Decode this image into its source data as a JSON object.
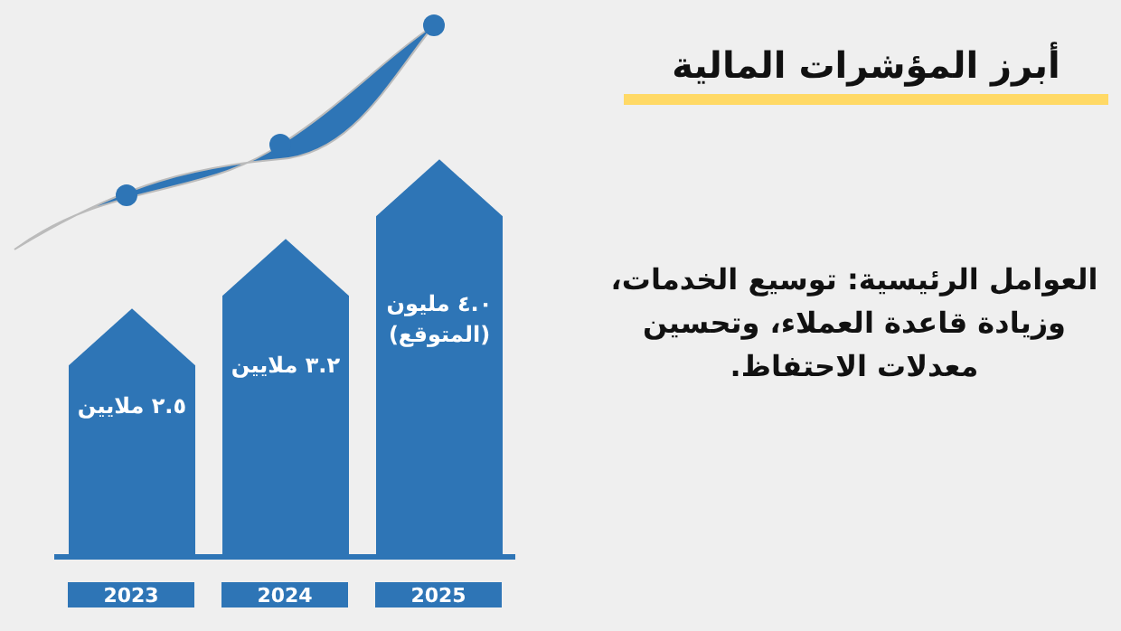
{
  "chart_data": {
    "type": "bar",
    "title": "أبرز المؤشرات المالية",
    "categories": [
      "2023",
      "2024",
      "2025"
    ],
    "values": [
      2.5,
      3.2,
      4.0
    ],
    "color": "#2e75b6",
    "value_labels": [
      "٢.٥ ملايين",
      "٣.٢ ملايين",
      "٤.٠ مليون\n(المتوقع)"
    ],
    "annotations": [
      "العوامل الرئيسية: توسيع الخدمات، وزيادة قاعدة العملاء، وتحسين معدلات الاحتفاظ."
    ]
  }
}
